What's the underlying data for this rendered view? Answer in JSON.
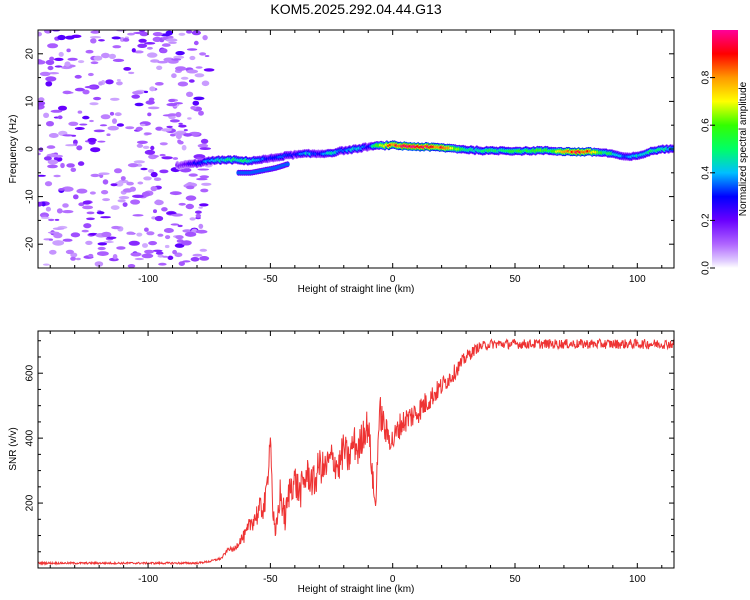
{
  "title": "KOM5.2025.292.04.44.G13",
  "chart_data": [
    {
      "type": "heatmap",
      "title": "KOM5.2025.292.04.44.G13",
      "xlabel": "Height of straight line (km)",
      "ylabel": "Frequency (Hz)",
      "xlim": [
        -145,
        115
      ],
      "ylim": [
        -25,
        25
      ],
      "xticks": [
        -100,
        -50,
        0,
        50,
        100
      ],
      "yticks": [
        -20,
        -10,
        0,
        10,
        20
      ],
      "colorbar": {
        "label": "Normalized spectral amplitude",
        "range": [
          0,
          1
        ],
        "ticks": [
          "0.0",
          "0.2",
          "0.4",
          "0.6",
          "0.8"
        ]
      },
      "noise_region_x": [
        -145,
        -75
      ],
      "trace": {
        "x": [
          -88,
          -80,
          -75,
          -70,
          -65,
          -60,
          -55,
          -50,
          -45,
          -40,
          -35,
          -30,
          -25,
          -20,
          -15,
          -10,
          -5,
          0,
          5,
          10,
          15,
          20,
          25,
          30,
          35,
          40,
          45,
          50,
          55,
          60,
          65,
          70,
          75,
          80,
          85,
          90,
          95,
          100,
          105,
          110,
          115
        ],
        "freq": [
          -3.5,
          -3,
          -2.5,
          -2.3,
          -2.3,
          -2.5,
          -2.3,
          -2,
          -1.5,
          -1.2,
          -1,
          -1,
          -0.8,
          -0.3,
          0,
          0.5,
          0.7,
          0.8,
          0.6,
          0.5,
          0.4,
          0.3,
          0.1,
          -0.1,
          -0.3,
          -0.4,
          -0.3,
          -0.4,
          -0.4,
          -0.3,
          -0.4,
          -0.5,
          -0.6,
          -0.6,
          -0.7,
          -1,
          -1.7,
          -1.5,
          -0.6,
          0,
          0
        ],
        "amplitude": [
          0.15,
          0.3,
          0.4,
          0.45,
          0.5,
          0.5,
          0.4,
          0.3,
          0.35,
          0.3,
          0.45,
          0.3,
          0.5,
          0.35,
          0.45,
          0.3,
          0.7,
          0.9,
          0.95,
          0.95,
          0.95,
          0.9,
          0.7,
          0.5,
          0.5,
          0.6,
          0.5,
          0.6,
          0.55,
          0.6,
          0.55,
          0.8,
          0.95,
          0.95,
          0.6,
          0.5,
          0.35,
          0.45,
          0.5,
          0.5,
          0.4
        ],
        "lower_branch": {
          "x": [
            -63,
            -58,
            -53,
            -48,
            -43
          ],
          "freq": [
            -5,
            -5,
            -4.5,
            -4,
            -3.2
          ]
        }
      }
    },
    {
      "type": "line",
      "xlabel": "Height of straight line (km)",
      "ylabel": "SNR (v/v)",
      "xlim": [
        -145,
        115
      ],
      "ylim": [
        0,
        730
      ],
      "xticks": [
        -100,
        -50,
        0,
        50,
        100
      ],
      "yticks": [
        200,
        400,
        600
      ],
      "series": [
        {
          "name": "SNR",
          "color": "#ee3333",
          "x": [
            -145,
            -120,
            -100,
            -80,
            -75,
            -70,
            -67,
            -65,
            -62,
            -60,
            -58,
            -55,
            -52,
            -51,
            -50,
            -49,
            -48,
            -46,
            -44,
            -42,
            -40,
            -38,
            -35,
            -32,
            -30,
            -28,
            -25,
            -22,
            -20,
            -18,
            -16,
            -14,
            -12,
            -10,
            -8,
            -7,
            -6,
            -5,
            -3,
            0,
            3,
            6,
            10,
            15,
            20,
            25,
            30,
            35,
            40,
            50,
            60,
            70,
            80,
            90,
            100,
            110,
            115
          ],
          "values": [
            15,
            15,
            15,
            15,
            20,
            30,
            60,
            55,
            90,
            100,
            140,
            170,
            200,
            290,
            420,
            180,
            90,
            230,
            150,
            250,
            270,
            230,
            290,
            260,
            320,
            300,
            340,
            310,
            370,
            330,
            390,
            360,
            420,
            440,
            260,
            180,
            400,
            480,
            420,
            390,
            440,
            460,
            480,
            520,
            560,
            600,
            650,
            680,
            690,
            690,
            690,
            690,
            690,
            690,
            690,
            690,
            690
          ],
          "noise_amplitude": [
            3,
            3,
            3,
            3,
            3,
            4,
            6,
            8,
            15,
            25,
            30,
            40,
            45,
            40,
            20,
            40,
            30,
            50,
            45,
            50,
            55,
            55,
            50,
            55,
            55,
            55,
            50,
            55,
            55,
            50,
            55,
            55,
            55,
            55,
            40,
            30,
            45,
            55,
            45,
            40,
            40,
            40,
            40,
            35,
            30,
            25,
            20,
            15,
            15,
            15,
            15,
            15,
            15,
            15,
            15,
            15,
            15
          ]
        }
      ]
    }
  ]
}
